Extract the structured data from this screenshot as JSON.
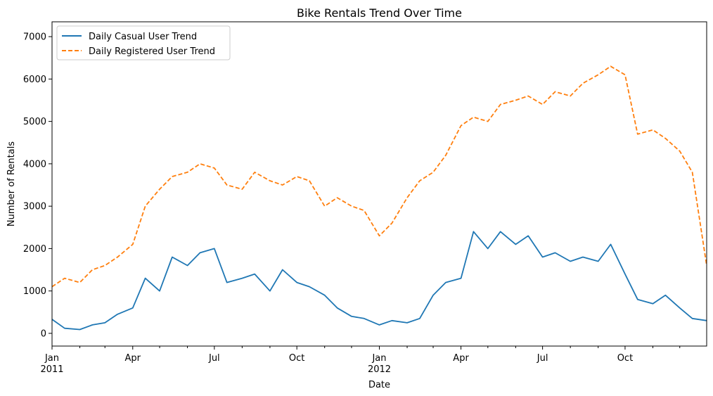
{
  "chart_data": {
    "type": "line",
    "title": "Bike Rentals Trend Over Time",
    "xlabel": "Date",
    "ylabel": "Number of Rentals",
    "xlim": [
      "2011-01-01",
      "2012-12-31"
    ],
    "ylim": [
      -300,
      7350
    ],
    "grid": false,
    "legend_position": "top-left",
    "y_ticks": [
      0,
      1000,
      2000,
      3000,
      4000,
      5000,
      6000,
      7000
    ],
    "x_ticks": [
      {
        "date": "2011-01-01",
        "label": "Jan",
        "sublabel": "2011"
      },
      {
        "date": "2011-04-01",
        "label": "Apr",
        "sublabel": ""
      },
      {
        "date": "2011-07-01",
        "label": "Jul",
        "sublabel": ""
      },
      {
        "date": "2011-10-01",
        "label": "Oct",
        "sublabel": ""
      },
      {
        "date": "2012-01-01",
        "label": "Jan",
        "sublabel": "2012"
      },
      {
        "date": "2012-04-01",
        "label": "Apr",
        "sublabel": ""
      },
      {
        "date": "2012-07-01",
        "label": "Jul",
        "sublabel": ""
      },
      {
        "date": "2012-10-01",
        "label": "Oct",
        "sublabel": ""
      }
    ],
    "x_minor_ticks": [
      "2011-02-01",
      "2011-03-01",
      "2011-05-01",
      "2011-06-01",
      "2011-08-01",
      "2011-09-01",
      "2011-11-01",
      "2011-12-01",
      "2012-02-01",
      "2012-03-01",
      "2012-05-01",
      "2012-06-01",
      "2012-08-01",
      "2012-09-01",
      "2012-11-01",
      "2012-12-01"
    ],
    "series": [
      {
        "name": "Daily Casual User Trend",
        "color": "#1f77b4",
        "dash": "solid",
        "x": [
          "2011-01-01",
          "2011-01-15",
          "2011-02-01",
          "2011-02-15",
          "2011-03-01",
          "2011-03-15",
          "2011-04-01",
          "2011-04-15",
          "2011-05-01",
          "2011-05-15",
          "2011-06-01",
          "2011-06-15",
          "2011-07-01",
          "2011-07-15",
          "2011-08-01",
          "2011-08-15",
          "2011-09-01",
          "2011-09-15",
          "2011-10-01",
          "2011-10-15",
          "2011-11-01",
          "2011-11-15",
          "2011-12-01",
          "2011-12-15",
          "2012-01-01",
          "2012-01-15",
          "2012-02-01",
          "2012-02-15",
          "2012-03-01",
          "2012-03-15",
          "2012-04-01",
          "2012-04-15",
          "2012-05-01",
          "2012-05-15",
          "2012-06-01",
          "2012-06-15",
          "2012-07-01",
          "2012-07-15",
          "2012-08-01",
          "2012-08-15",
          "2012-09-01",
          "2012-09-15",
          "2012-10-01",
          "2012-10-15",
          "2012-11-01",
          "2012-11-15",
          "2012-12-01",
          "2012-12-15",
          "2012-12-31"
        ],
        "values": [
          330,
          120,
          90,
          200,
          250,
          450,
          600,
          1300,
          1000,
          1800,
          1600,
          1900,
          2000,
          1200,
          1300,
          1400,
          1000,
          1500,
          1200,
          1100,
          900,
          600,
          400,
          350,
          200,
          300,
          250,
          350,
          900,
          1200,
          1300,
          2400,
          2000,
          2400,
          2100,
          2300,
          1800,
          1900,
          1700,
          1800,
          1700,
          2100,
          1400,
          800,
          700,
          900,
          600,
          350,
          300
        ]
      },
      {
        "name": "Daily Registered User Trend",
        "color": "#ff7f0e",
        "dash": "dashed",
        "x": [
          "2011-01-01",
          "2011-01-15",
          "2011-02-01",
          "2011-02-15",
          "2011-03-01",
          "2011-03-15",
          "2011-04-01",
          "2011-04-15",
          "2011-05-01",
          "2011-05-15",
          "2011-06-01",
          "2011-06-15",
          "2011-07-01",
          "2011-07-15",
          "2011-08-01",
          "2011-08-15",
          "2011-09-01",
          "2011-09-15",
          "2011-10-01",
          "2011-10-15",
          "2011-11-01",
          "2011-11-15",
          "2011-12-01",
          "2011-12-15",
          "2012-01-01",
          "2012-01-15",
          "2012-02-01",
          "2012-02-15",
          "2012-03-01",
          "2012-03-15",
          "2012-04-01",
          "2012-04-15",
          "2012-05-01",
          "2012-05-15",
          "2012-06-01",
          "2012-06-15",
          "2012-07-01",
          "2012-07-15",
          "2012-08-01",
          "2012-08-15",
          "2012-09-01",
          "2012-09-15",
          "2012-10-01",
          "2012-10-15",
          "2012-11-01",
          "2012-11-15",
          "2012-12-01",
          "2012-12-15",
          "2012-12-31"
        ],
        "values": [
          1100,
          1300,
          1200,
          1500,
          1600,
          1800,
          2100,
          3000,
          3400,
          3700,
          3800,
          4000,
          3900,
          3500,
          3400,
          3800,
          3600,
          3500,
          3700,
          3600,
          3000,
          3200,
          3000,
          2900,
          2300,
          2600,
          3200,
          3600,
          3800,
          4200,
          4900,
          5100,
          5000,
          5400,
          5500,
          5600,
          5400,
          5700,
          5600,
          5900,
          6100,
          6300,
          6100,
          4700,
          4800,
          4600,
          4300,
          3800,
          1600
        ]
      }
    ]
  }
}
